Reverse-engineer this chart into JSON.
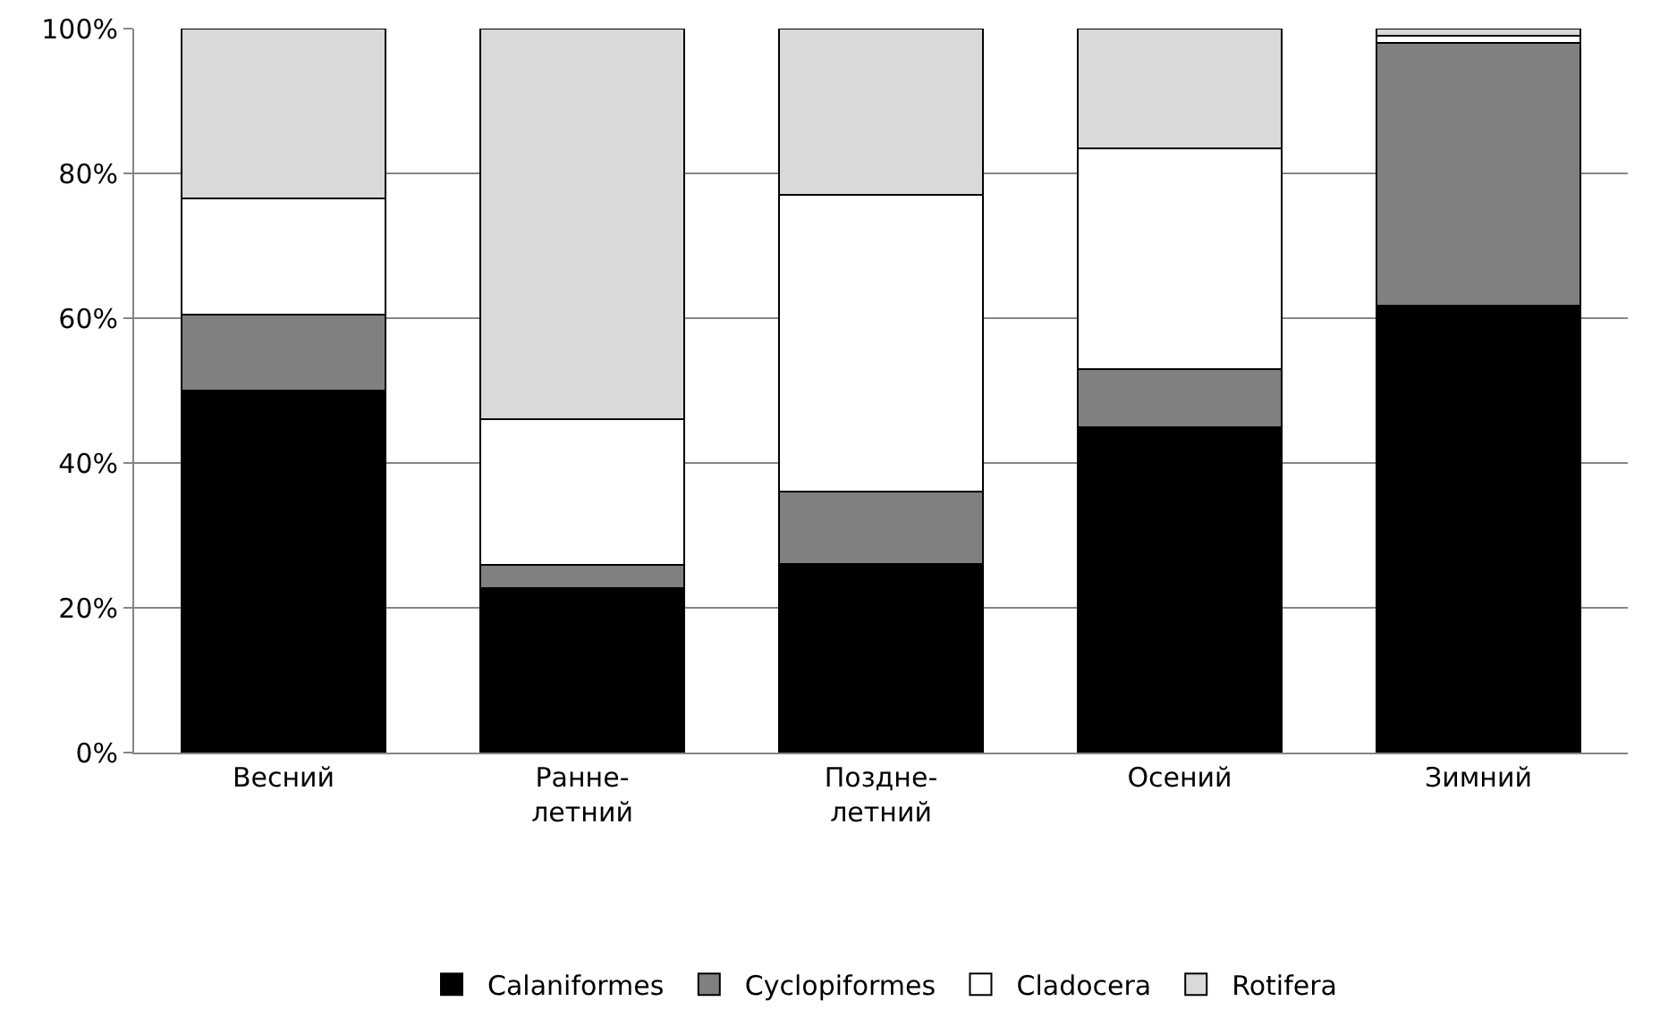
{
  "chart_data": {
    "type": "bar",
    "stacked": true,
    "categories": [
      "Весний",
      "Ранне-\nлетний",
      "Поздне-\nлетний",
      "Осений",
      "Зимний"
    ],
    "series": [
      {
        "name": "Calaniformes",
        "color": "#000000",
        "values": [
          50,
          22.7,
          26,
          45,
          61.7
        ]
      },
      {
        "name": "Cyclopiformes",
        "color": "#808080",
        "values": [
          10.5,
          3.2,
          10,
          8,
          36.3
        ]
      },
      {
        "name": "Cladocera",
        "color": "#ffffff",
        "values": [
          16,
          20.2,
          41,
          30.5,
          1
        ]
      },
      {
        "name": "Rotifera",
        "color": "#d9d9d9",
        "values": [
          23.5,
          53.9,
          23,
          16.5,
          1
        ]
      }
    ],
    "ylim": [
      0,
      100
    ],
    "yticks": [
      {
        "value": 0,
        "label": "0%"
      },
      {
        "value": 20,
        "label": "20%"
      },
      {
        "value": 40,
        "label": "40%"
      },
      {
        "value": 60,
        "label": "60%"
      },
      {
        "value": 80,
        "label": "80%"
      },
      {
        "value": 100,
        "label": "100%"
      }
    ],
    "grid": "y",
    "legend": "bottom"
  }
}
